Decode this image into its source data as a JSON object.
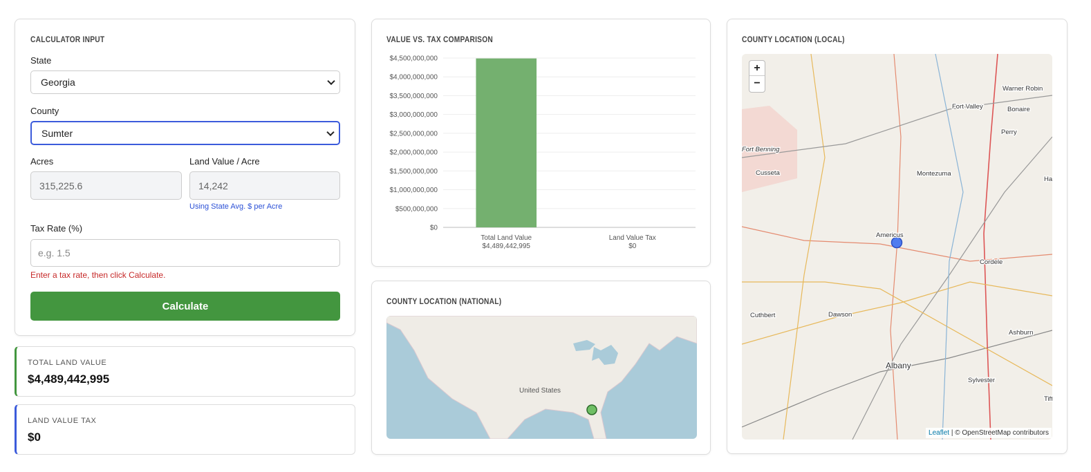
{
  "calculator": {
    "title": "CALCULATOR INPUT",
    "state_label": "State",
    "state_value": "Georgia",
    "county_label": "County",
    "county_value": "Sumter",
    "acres_label": "Acres",
    "acres_value": "315,225.6",
    "land_value_label": "Land Value / Acre",
    "land_value_value": "14,242",
    "land_value_hint": "Using State Avg. $ per Acre",
    "tax_rate_label": "Tax Rate (%)",
    "tax_rate_placeholder": "e.g. 1.5",
    "error": "Enter a tax rate, then click Calculate.",
    "button": "Calculate"
  },
  "results": [
    {
      "label": "TOTAL LAND VALUE",
      "value": "$4,489,442,995"
    },
    {
      "label": "LAND VALUE TAX",
      "value": "$0"
    }
  ],
  "chart_data": {
    "type": "bar",
    "title": "VALUE VS. TAX COMPARISON",
    "categories": [
      "Total Land Value",
      "Land Value Tax"
    ],
    "values": [
      4489442995,
      0
    ],
    "value_labels": [
      "$4,489,442,995",
      "$0"
    ],
    "color": "#74b06f",
    "ylim": [
      0,
      4500000000
    ],
    "yticks": [
      {
        "value": 0,
        "label": "$0"
      },
      {
        "value": 500000000,
        "label": "$500,000,000"
      },
      {
        "value": 1000000000,
        "label": "$1,000,000,000"
      },
      {
        "value": 1500000000,
        "label": "$1,500,000,000"
      },
      {
        "value": 2000000000,
        "label": "$2,000,000,000"
      },
      {
        "value": 2500000000,
        "label": "$2,500,000,000"
      },
      {
        "value": 3000000000,
        "label": "$3,000,000,000"
      },
      {
        "value": 3500000000,
        "label": "$3,500,000,000"
      },
      {
        "value": 4000000000,
        "label": "$4,000,000,000"
      },
      {
        "value": 4500000000,
        "label": "$4,500,000,000"
      }
    ],
    "grid": true
  },
  "national_map": {
    "title": "COUNTY LOCATION (NATIONAL)",
    "country": "United States"
  },
  "local_map": {
    "title": "COUNTY LOCATION (LOCAL)",
    "zoom_in": "+",
    "zoom_out": "−",
    "attribution_link": "Leaflet",
    "attribution": "| © OpenStreetMap contributors",
    "places": [
      "Warner Robin",
      "Fort Valley",
      "Bonaire",
      "Perry",
      "Fort Benning",
      "Cusseta",
      "Montezuma",
      "Americus",
      "Cordele",
      "Cuthbert",
      "Dawson",
      "Ashburn",
      "Albany",
      "Sylvester",
      "Ha",
      "Tift"
    ]
  }
}
